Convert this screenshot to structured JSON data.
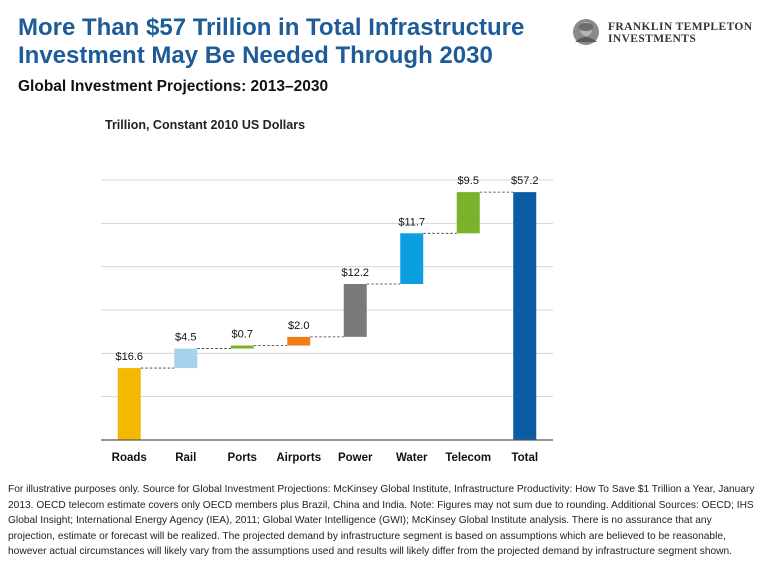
{
  "header": {
    "title_line1": "More Than $57 Trillion in Total Infrastructure",
    "title_line2": "Investment May Be Needed Through 2030",
    "subtitle": "Global Investment Projections: 2013–2030",
    "logo_line1": "FRANKLIN TEMPLETON",
    "logo_line2": "INVESTMENTS"
  },
  "chart_data": {
    "type": "waterfall",
    "units_label": "Trillion, Constant 2010 US Dollars",
    "categories": [
      "Roads",
      "Rail",
      "Ports",
      "Airports",
      "Power",
      "Water",
      "Telecom",
      "Total"
    ],
    "values": [
      16.6,
      4.5,
      0.7,
      2.0,
      12.2,
      11.7,
      9.5,
      57.2
    ],
    "data_labels": [
      "$16.6",
      "$4.5",
      "$0.7",
      "$2.0",
      "$12.2",
      "$11.7",
      "$9.5",
      "$57.2"
    ],
    "colors": [
      "#f5b800",
      "#a6d2f0",
      "#7ab22a",
      "#f07d1a",
      "#7a7a7a",
      "#0b9fdf",
      "#7ab22a",
      "#0b5ca2"
    ],
    "ylim": [
      0,
      60
    ],
    "gridline_step": 10,
    "grid": true,
    "connectors": "dashed"
  },
  "footnote": "For illustrative purposes only. Source for Global Investment Projections: McKinsey Global Institute, Infrastructure Productivity: How To Save $1 Trillion a Year, January 2013. OECD telecom estimate covers only OECD members plus Brazil, China and India. Note: Figures may not sum due to rounding. Additional Sources: OECD; IHS Global Insight; International Energy Agency (IEA), 2011; Global Water Intelligence (GWI); McKinsey Global Institute analysis. There is no assurance that any projection, estimate or forecast will be realized. The projected demand by infrastructure segment is based on assumptions which are believed to be reasonable, however actual circumstances will likely vary from the assumptions used and results will likely differ from the projected demand by infrastructure segment shown."
}
